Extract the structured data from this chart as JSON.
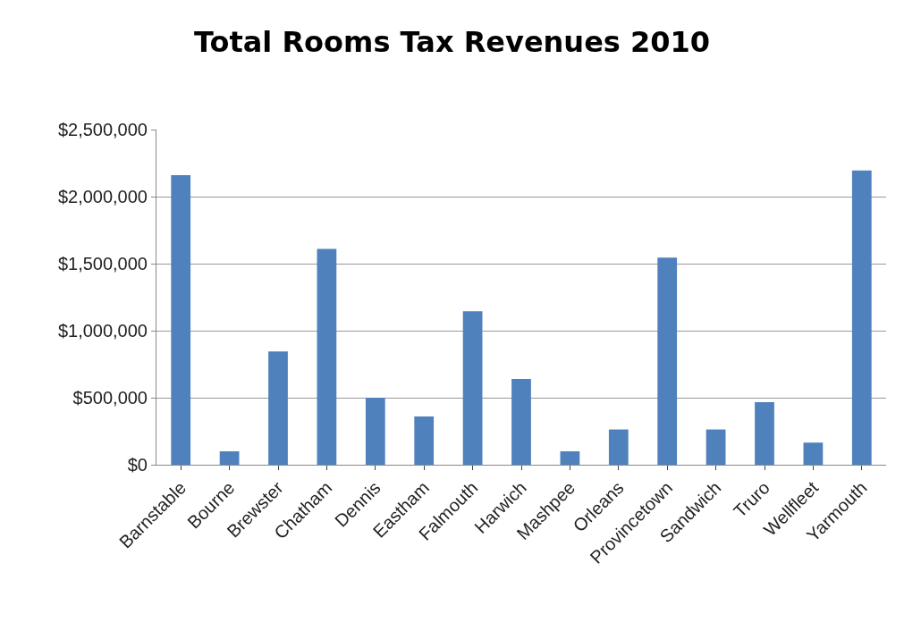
{
  "chart_data": {
    "type": "bar",
    "title": "Total Rooms Tax Revenues 2010",
    "categories": [
      "Barnstable",
      "Bourne",
      "Brewster",
      "Chatham",
      "Dennis",
      "Eastham",
      "Falmouth",
      "Harwich",
      "Mashpee",
      "Orleans",
      "Provincetown",
      "Sandwich",
      "Truro",
      "Wellfleet",
      "Yarmouth"
    ],
    "values": [
      2160000,
      100000,
      845000,
      1610000,
      500000,
      360000,
      1145000,
      640000,
      100000,
      263000,
      1545000,
      263000,
      467000,
      165000,
      2195000
    ],
    "color": "#4f81bd",
    "ylim": [
      0,
      2500000
    ],
    "yticks": [
      {
        "value": 0,
        "label": "$0"
      },
      {
        "value": 500000,
        "label": "$500,000"
      },
      {
        "value": 1000000,
        "label": "$1,000,000"
      },
      {
        "value": 1500000,
        "label": "$1,500,000"
      },
      {
        "value": 2000000,
        "label": "$2,000,000"
      },
      {
        "value": 2500000,
        "label": "$2,500,000"
      }
    ],
    "grid": "y"
  }
}
